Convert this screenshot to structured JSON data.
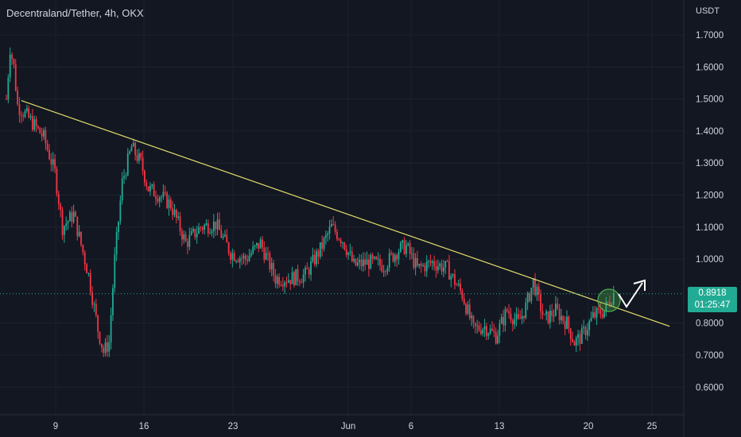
{
  "header": {
    "title": "Decentraland/Tether, 4h, OKX",
    "currency": "USDT"
  },
  "price_tag": {
    "price": "0.8918",
    "countdown": "01:25:47"
  },
  "colors": {
    "background": "#131722",
    "grid": "#1e222d",
    "up": "#22ab94",
    "down": "#f23645",
    "trendline": "#e5e06a",
    "highlight": "#4caf50",
    "text": "#d1d4dc"
  },
  "chart_data": {
    "type": "candlestick",
    "y_ticks": [
      "1.7000",
      "1.6000",
      "1.5000",
      "1.4000",
      "1.3000",
      "1.2000",
      "1.1000",
      "1.0000",
      "0.8000",
      "0.7000",
      "0.6000"
    ],
    "x_ticks": [
      "9",
      "16",
      "23",
      "Jun",
      "6",
      "13",
      "20",
      "25"
    ],
    "ylim": [
      0.55,
      1.8
    ],
    "grid": true,
    "approx_close_path": [
      {
        "i": 0,
        "v": 1.5
      },
      {
        "i": 2,
        "v": 1.66
      },
      {
        "i": 4,
        "v": 1.6
      },
      {
        "i": 6,
        "v": 1.48
      },
      {
        "i": 12,
        "v": 1.44
      },
      {
        "i": 20,
        "v": 1.38
      },
      {
        "i": 26,
        "v": 1.27
      },
      {
        "i": 30,
        "v": 1.1
      },
      {
        "i": 36,
        "v": 1.14
      },
      {
        "i": 44,
        "v": 0.95
      },
      {
        "i": 49,
        "v": 0.78
      },
      {
        "i": 52,
        "v": 0.71
      },
      {
        "i": 55,
        "v": 0.74
      },
      {
        "i": 58,
        "v": 1.0
      },
      {
        "i": 62,
        "v": 1.24
      },
      {
        "i": 67,
        "v": 1.35
      },
      {
        "i": 72,
        "v": 1.3
      },
      {
        "i": 76,
        "v": 1.22
      },
      {
        "i": 82,
        "v": 1.2
      },
      {
        "i": 88,
        "v": 1.17
      },
      {
        "i": 96,
        "v": 1.05
      },
      {
        "i": 104,
        "v": 1.1
      },
      {
        "i": 112,
        "v": 1.11
      },
      {
        "i": 120,
        "v": 1.02
      },
      {
        "i": 128,
        "v": 1.0
      },
      {
        "i": 136,
        "v": 1.05
      },
      {
        "i": 144,
        "v": 0.94
      },
      {
        "i": 152,
        "v": 0.94
      },
      {
        "i": 160,
        "v": 0.95
      },
      {
        "i": 168,
        "v": 1.03
      },
      {
        "i": 174,
        "v": 1.1
      },
      {
        "i": 180,
        "v": 1.06
      },
      {
        "i": 186,
        "v": 0.98
      },
      {
        "i": 194,
        "v": 0.99
      },
      {
        "i": 202,
        "v": 0.98
      },
      {
        "i": 210,
        "v": 1.03
      },
      {
        "i": 214,
        "v": 1.04
      },
      {
        "i": 220,
        "v": 0.97
      },
      {
        "i": 228,
        "v": 0.99
      },
      {
        "i": 236,
        "v": 0.97
      },
      {
        "i": 244,
        "v": 0.89
      },
      {
        "i": 250,
        "v": 0.78
      },
      {
        "i": 256,
        "v": 0.79
      },
      {
        "i": 262,
        "v": 0.76
      },
      {
        "i": 268,
        "v": 0.84
      },
      {
        "i": 274,
        "v": 0.8
      },
      {
        "i": 278,
        "v": 0.85
      },
      {
        "i": 282,
        "v": 0.93
      },
      {
        "i": 288,
        "v": 0.81
      },
      {
        "i": 294,
        "v": 0.84
      },
      {
        "i": 300,
        "v": 0.8
      },
      {
        "i": 304,
        "v": 0.74
      },
      {
        "i": 308,
        "v": 0.76
      },
      {
        "i": 314,
        "v": 0.82
      },
      {
        "i": 320,
        "v": 0.84
      },
      {
        "i": 325,
        "v": 0.8918
      }
    ],
    "trendline": {
      "from": {
        "i": 8,
        "v": 1.495
      },
      "to": {
        "i": 355,
        "v": 0.79
      }
    },
    "last_price": 0.8918
  }
}
